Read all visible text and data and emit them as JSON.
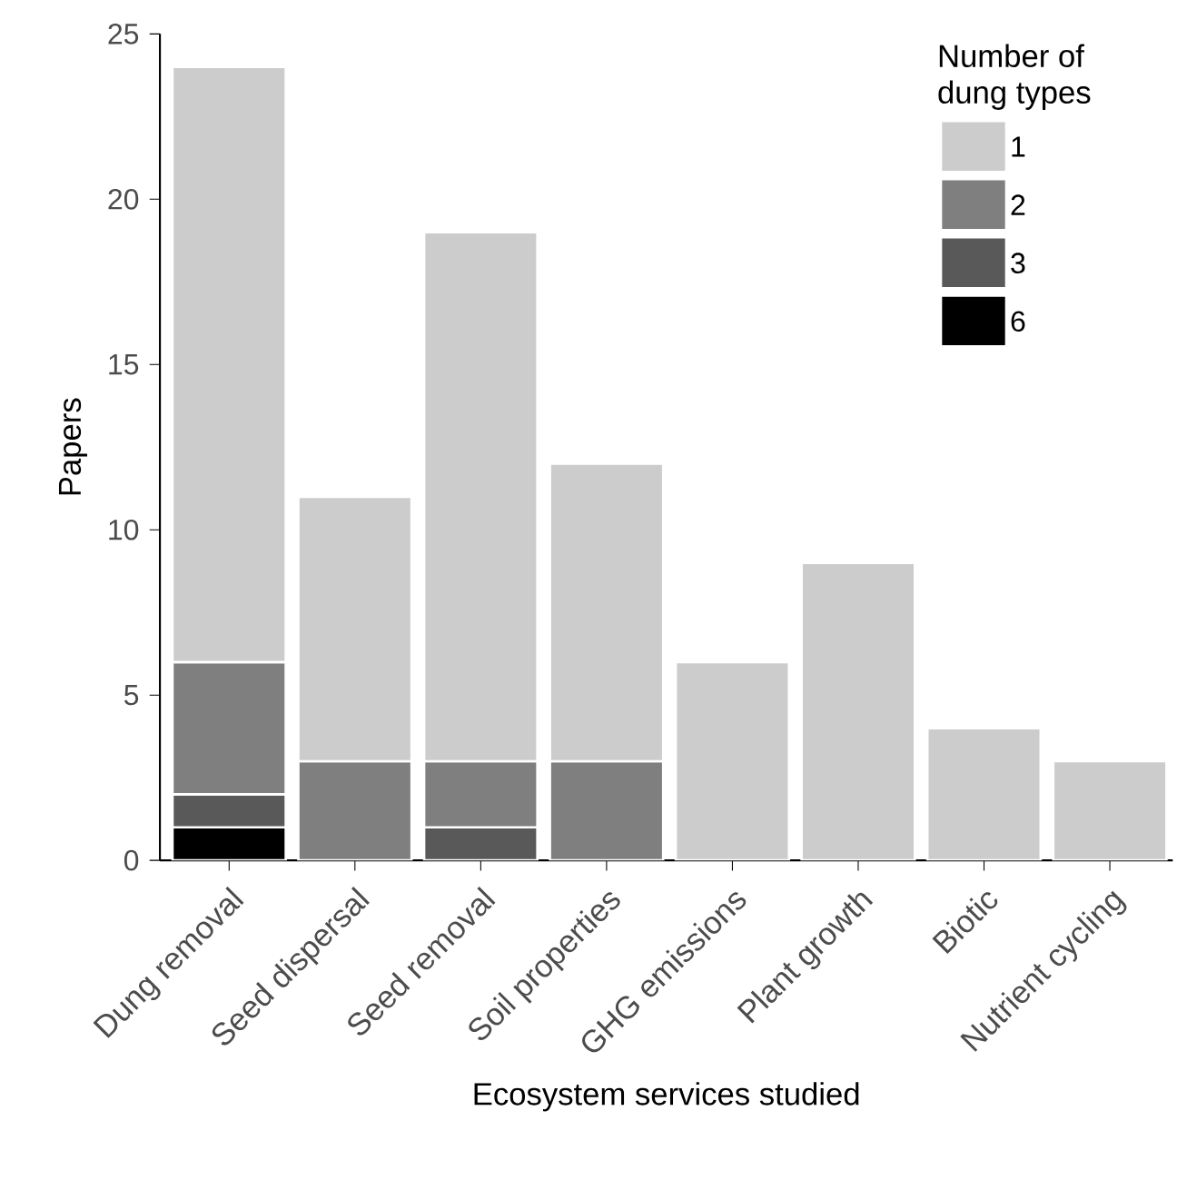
{
  "chart_data": {
    "type": "bar",
    "xlabel": "Ecosystem services studied",
    "ylabel": "Papers",
    "legend_title": "Number of dung types",
    "categories": [
      "Dung removal",
      "Seed dispersal",
      "Seed removal",
      "Soil properties",
      "GHG emissions",
      "Plant growth",
      "Biotic",
      "Nutrient cycling"
    ],
    "series": [
      {
        "name": "6",
        "color": "#000000",
        "values": [
          1,
          null,
          null,
          null,
          null,
          null,
          null,
          null
        ]
      },
      {
        "name": "3",
        "color": "#595959",
        "values": [
          1,
          null,
          1,
          null,
          null,
          null,
          null,
          null
        ]
      },
      {
        "name": "2",
        "color": "#7f7f7f",
        "values": [
          4,
          3,
          2,
          3,
          null,
          null,
          null,
          null
        ]
      },
      {
        "name": "1",
        "color": "#cccccc",
        "values": [
          18,
          8,
          16,
          9,
          6,
          9,
          4,
          3
        ]
      }
    ],
    "stacked": true,
    "ylim": [
      0,
      25
    ],
    "yticks": [
      0,
      5,
      10,
      15,
      20,
      25
    ],
    "grid": false,
    "legend": "top right"
  }
}
